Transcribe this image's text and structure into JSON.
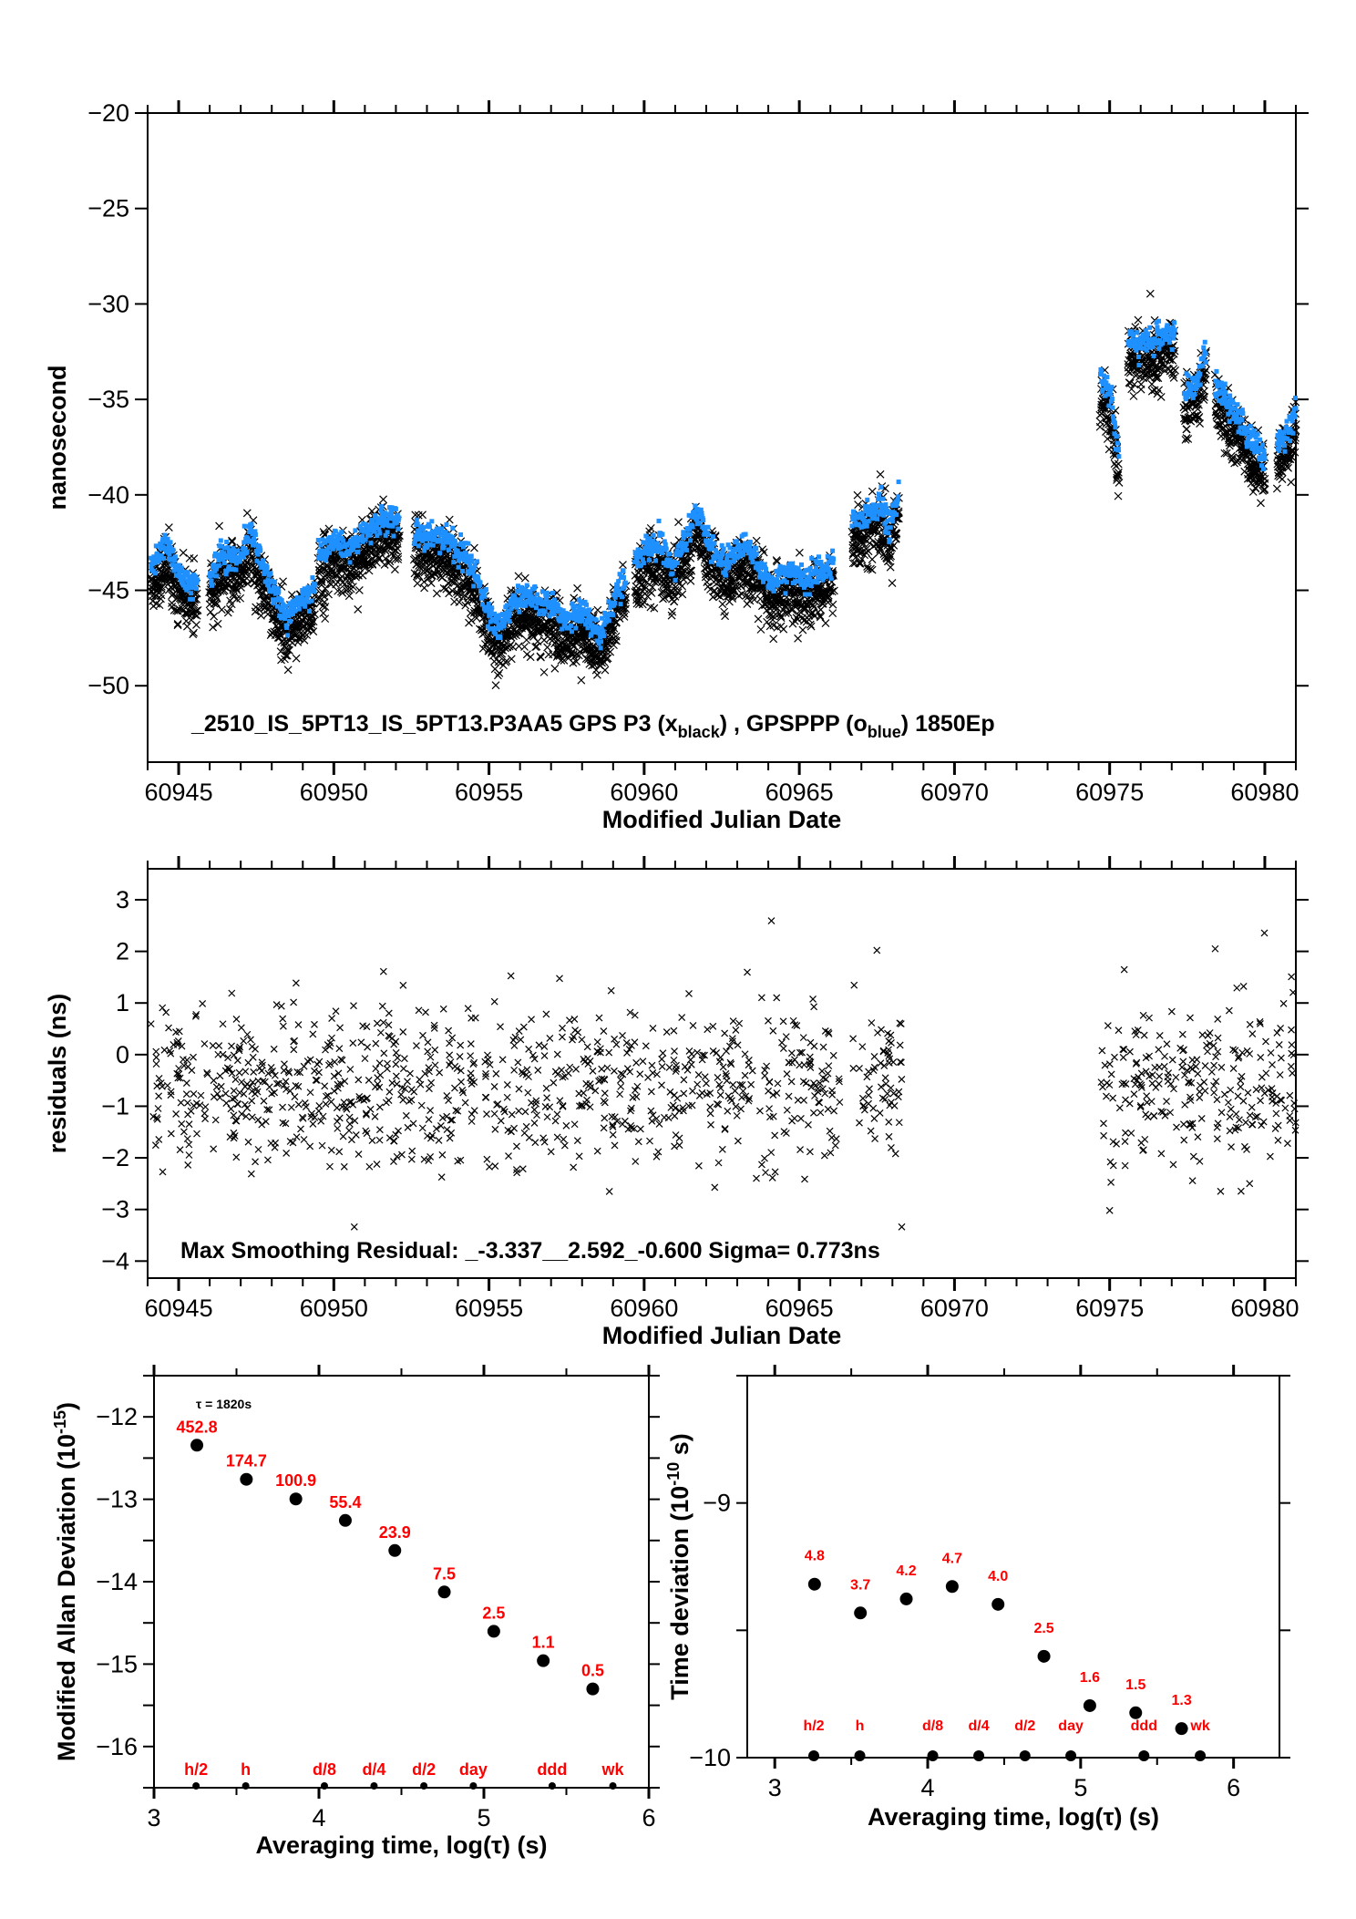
{
  "colors": {
    "axis": "#000000",
    "black_series": "#000000",
    "blue_series": "#1e90ff",
    "label_red": "#ff0000",
    "background": "#ffffff"
  },
  "chart_data": [
    {
      "id": "time-series",
      "type": "scatter",
      "title": "_2510_IS_5PT13_IS_5PT13.P3AA5    GPS P3 (x_black) ,  GPSPPP (o_blue)  1850Ep",
      "annotation": {
        "prefix": "_2510_IS_5PT13_IS_5PT13.P3AA5    GPS P3 (x",
        "sub1": "black",
        "mid": ") ,  GPSPPP (o",
        "sub2": "blue",
        "suffix": ")  1850Ep"
      },
      "xlabel": "Modified Julian Date",
      "ylabel": "nanosecond",
      "xlim": [
        60944.0,
        60981.0
      ],
      "ylim": [
        -54.0,
        -20.0
      ],
      "xticks": [
        60945,
        60950,
        60955,
        60960,
        60965,
        60970,
        60975,
        60980
      ],
      "xtick_labels": [
        "60945",
        "60950",
        "60955",
        "60960",
        "60965",
        "60970",
        "60975",
        "60980"
      ],
      "yticks": [
        -50,
        -45,
        -40,
        -35,
        -30,
        -25,
        -20
      ],
      "ytick_labels": [
        "−50",
        "−45",
        "−40",
        "−35",
        "−30",
        "−25",
        "−20"
      ],
      "grid": false,
      "series": [
        {
          "name": "GPSPPP (o blue)",
          "marker": "dot",
          "color": "#1e90ff",
          "note": "dense scatter; trend anchors [MJD, ns] per data segment",
          "segments": [
            [
              [
                60944.1,
                -43.8
              ],
              [
                60944.6,
                -42.6
              ],
              [
                60945.0,
                -44.0
              ],
              [
                60945.4,
                -44.8
              ],
              [
                60945.6,
                -44.3
              ]
            ],
            [
              [
                60946.0,
                -44.5
              ],
              [
                60946.3,
                -43.2
              ],
              [
                60947.0,
                -43.3
              ],
              [
                60947.3,
                -42.0
              ],
              [
                60947.7,
                -43.6
              ],
              [
                60948.2,
                -45.5
              ],
              [
                60948.5,
                -46.6
              ],
              [
                60948.9,
                -45.6
              ],
              [
                60949.4,
                -44.8
              ]
            ],
            [
              [
                60949.5,
                -43.0
              ],
              [
                60950.0,
                -42.5
              ],
              [
                60950.6,
                -42.8
              ],
              [
                60951.2,
                -41.6
              ],
              [
                60951.8,
                -41.2
              ],
              [
                60952.1,
                -41.3
              ]
            ],
            [
              [
                60952.6,
                -42.0
              ],
              [
                60953.0,
                -42.2
              ],
              [
                60953.6,
                -42.3
              ],
              [
                60954.2,
                -43.2
              ],
              [
                60954.6,
                -44.3
              ],
              [
                60955.0,
                -46.3
              ],
              [
                60955.3,
                -47.0
              ],
              [
                60955.9,
                -45.5
              ],
              [
                60956.5,
                -45.4
              ],
              [
                60957.0,
                -45.8
              ],
              [
                60957.5,
                -46.6
              ],
              [
                60958.0,
                -46.0
              ],
              [
                60958.6,
                -47.3
              ],
              [
                60959.1,
                -45.0
              ],
              [
                60959.4,
                -44.3
              ]
            ],
            [
              [
                60959.7,
                -43.5
              ],
              [
                60960.1,
                -42.8
              ],
              [
                60960.5,
                -42.6
              ],
              [
                60960.9,
                -43.8
              ],
              [
                60961.4,
                -42.0
              ],
              [
                60961.7,
                -40.8
              ],
              [
                60962.1,
                -42.6
              ],
              [
                60962.6,
                -43.6
              ],
              [
                60963.2,
                -42.5
              ],
              [
                60963.7,
                -43.5
              ],
              [
                60964.1,
                -44.7
              ],
              [
                60964.6,
                -44.0
              ],
              [
                60965.2,
                -44.4
              ],
              [
                60965.8,
                -44.0
              ],
              [
                60966.1,
                -43.6
              ]
            ],
            [
              [
                60966.7,
                -41.5
              ],
              [
                60967.2,
                -41.0
              ],
              [
                60967.6,
                -40.3
              ],
              [
                60967.9,
                -41.8
              ],
              [
                60968.2,
                -40.0
              ]
            ],
            [
              [
                60974.7,
                -34.0
              ],
              [
                60975.0,
                -34.6
              ],
              [
                60975.2,
                -36.8
              ],
              [
                60975.3,
                -38.2
              ]
            ],
            [
              [
                60975.6,
                -31.8
              ],
              [
                60976.0,
                -32.2
              ],
              [
                60976.4,
                -31.8
              ],
              [
                60976.8,
                -31.6
              ],
              [
                60977.1,
                -31.5
              ]
            ],
            [
              [
                60977.4,
                -34.7
              ],
              [
                60977.8,
                -34.2
              ],
              [
                60978.1,
                -32.5
              ]
            ],
            [
              [
                60978.4,
                -34.1
              ],
              [
                60978.8,
                -35.3
              ],
              [
                60979.2,
                -36.0
              ],
              [
                60979.6,
                -37.2
              ],
              [
                60980.0,
                -37.9
              ]
            ],
            [
              [
                60980.4,
                -37.4
              ],
              [
                60980.8,
                -36.4
              ],
              [
                60981.0,
                -35.5
              ]
            ]
          ]
        },
        {
          "name": "GPS P3 (x black)",
          "marker": "x",
          "color": "#000000",
          "note": "follows blue trend offset by about -1.0 ns with ~1 ns scatter",
          "offset": -1.0,
          "spread": 1.0
        }
      ]
    },
    {
      "id": "residuals",
      "type": "scatter",
      "xlabel": "Modified Julian Date",
      "ylabel": "residuals (ns)",
      "annotation": "Max Smoothing Residual: _-3.337__2.592_-0.600  Sigma= 0.773ns",
      "xlim": [
        60944.0,
        60981.0
      ],
      "ylim": [
        -4.33,
        3.6
      ],
      "xticks": [
        60945,
        60950,
        60955,
        60960,
        60965,
        60970,
        60975,
        60980
      ],
      "xtick_labels": [
        "60945",
        "60950",
        "60955",
        "60960",
        "60965",
        "60970",
        "60975",
        "60980"
      ],
      "yticks": [
        -4,
        -3,
        -2,
        -1,
        0,
        1,
        2,
        3
      ],
      "ytick_labels": [
        "−4",
        "−3",
        "−2",
        "−1",
        "0",
        "1",
        "2",
        "3"
      ],
      "grid": false,
      "stats": {
        "min": -3.337,
        "max": 2.592,
        "mean": -0.6,
        "sigma": 0.773
      },
      "data_ranges": [
        [
          60944.1,
          60966.3
        ],
        [
          60966.7,
          60968.3
        ],
        [
          60974.7,
          60981.0
        ]
      ],
      "extremes": [
        [
          60964.1,
          2.592
        ],
        [
          60968.3,
          -3.337
        ],
        [
          60975.0,
          -3.02
        ],
        [
          60978.4,
          2.05
        ],
        [
          60967.5,
          2.02
        ]
      ]
    },
    {
      "id": "mdev",
      "type": "scatter",
      "xlabel": "Averaging time, log(τ) (s)",
      "ylabel": "Modified Allan Deviation (10⁻¹⁵)",
      "ylabel_main": "Modified Allan Deviation (10",
      "ylabel_sup": "-15",
      "ylabel_end": ")",
      "note": "τ = 1820s",
      "xlim": [
        3.0,
        6.0
      ],
      "ylim": [
        -16.5,
        -11.5
      ],
      "xticks": [
        3,
        4,
        5,
        6
      ],
      "xtick_labels": [
        "3",
        "4",
        "5",
        "6"
      ],
      "yticks": [
        -16,
        -15,
        -14,
        -13,
        -12
      ],
      "ytick_labels": [
        "−16",
        "−15",
        "−14",
        "−13",
        "−12"
      ],
      "grid": false,
      "x": [
        3.26,
        3.56,
        3.86,
        4.16,
        4.46,
        4.76,
        5.06,
        5.36,
        5.66
      ],
      "labels": [
        "452.8",
        "174.7",
        "100.9",
        "55.4",
        "23.9",
        "7.5",
        "2.5",
        "1.1",
        "0.5"
      ],
      "values_e15": [
        452.8,
        174.7,
        100.9,
        55.4,
        23.9,
        7.5,
        2.5,
        1.1,
        0.5
      ],
      "reference_marks": {
        "x": [
          3.255,
          3.556,
          4.033,
          4.334,
          4.636,
          4.936,
          5.414,
          5.782
        ],
        "labels": [
          "h/2",
          "h",
          "d/8",
          "d/4",
          "d/2",
          "day",
          "ddd",
          "wk"
        ]
      }
    },
    {
      "id": "tdev",
      "type": "scatter",
      "xlabel": "Averaging time, log(τ) (s)",
      "ylabel": "Time deviation (10⁻¹⁰ s)",
      "ylabel_main": "Time deviation (10",
      "ylabel_sup": "-10",
      "ylabel_end": " s)",
      "xlim": [
        2.82,
        6.3
      ],
      "ylim": [
        -10.0,
        -8.5
      ],
      "xticks": [
        3,
        4,
        5,
        6
      ],
      "xtick_labels": [
        "3",
        "4",
        "5",
        "6"
      ],
      "yticks": [
        -10,
        -9
      ],
      "ytick_labels": [
        "−10",
        "−9"
      ],
      "grid": false,
      "x": [
        3.26,
        3.56,
        3.86,
        4.16,
        4.46,
        4.76,
        5.06,
        5.36,
        5.66
      ],
      "labels": [
        "4.8",
        "3.7",
        "4.2",
        "4.7",
        "4.0",
        "2.5",
        "1.6",
        "1.5",
        "1.3"
      ],
      "values_e10": [
        4.8,
        3.7,
        4.2,
        4.7,
        4.0,
        2.5,
        1.6,
        1.5,
        1.3
      ],
      "reference_marks": {
        "x": [
          3.255,
          3.556,
          4.033,
          4.334,
          4.636,
          4.936,
          5.414,
          5.782
        ],
        "labels": [
          "h/2",
          "h",
          "d/8",
          "d/4",
          "d/2",
          "day",
          "ddd",
          "wk"
        ]
      }
    }
  ]
}
